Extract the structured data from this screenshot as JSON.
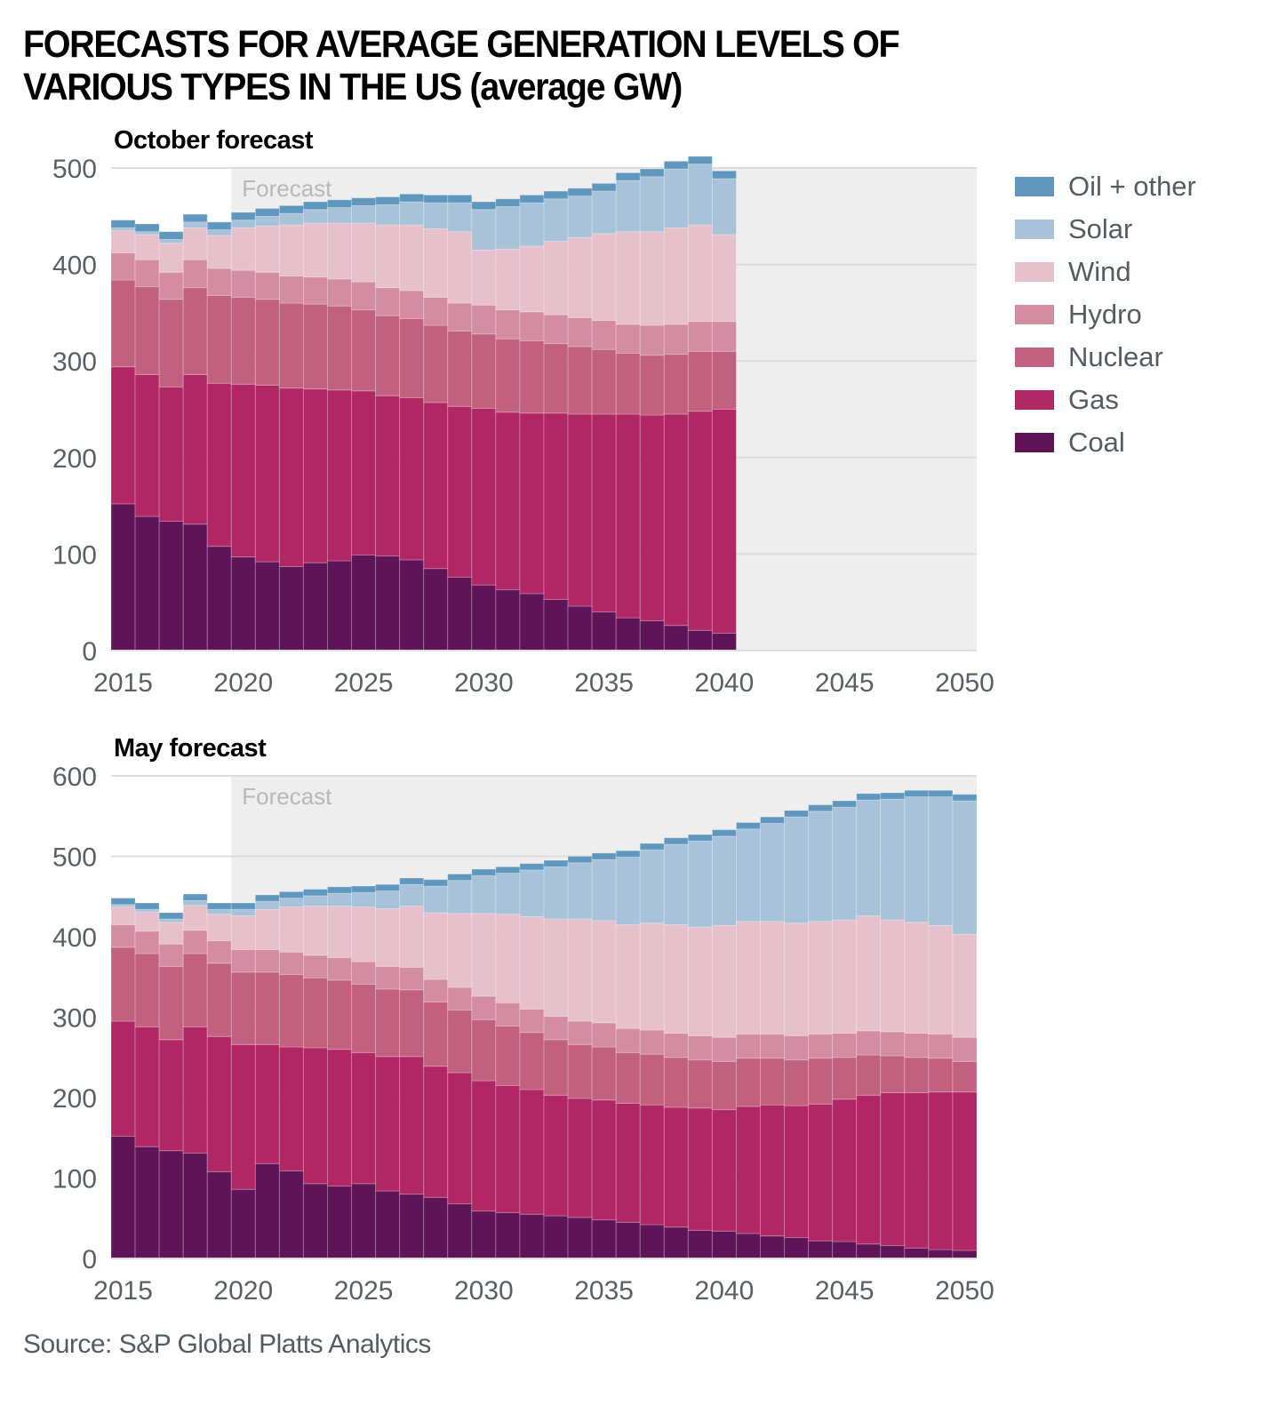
{
  "title": "FORECASTS FOR AVERAGE GENERATION LEVELS OF VARIOUS TYPES IN THE US (average GW)",
  "source": "Source: S&P Global Platts Analytics",
  "legend": [
    {
      "name": "Oil + other",
      "color": "#5f97bf"
    },
    {
      "name": "Solar",
      "color": "#a7c2d9"
    },
    {
      "name": "Wind",
      "color": "#e6c0cb"
    },
    {
      "name": "Hydro",
      "color": "#d48ca3"
    },
    {
      "name": "Nuclear",
      "color": "#c2607f"
    },
    {
      "name": "Gas",
      "color": "#b12763"
    },
    {
      "name": "Coal",
      "color": "#5e1456"
    }
  ],
  "chart_data": [
    {
      "type": "bar",
      "stacked": true,
      "title": "October forecast",
      "forecast_label": "Forecast",
      "forecast_start": 2020,
      "xlabel": "",
      "ylabel": "",
      "xlim": [
        2015,
        2050
      ],
      "ylim": [
        0,
        500
      ],
      "yticks": [
        0,
        100,
        200,
        300,
        400,
        500
      ],
      "xticks": [
        2015,
        2020,
        2025,
        2030,
        2035,
        2040,
        2045,
        2050
      ],
      "grid": true,
      "legend_position": "right",
      "categories": [
        2015,
        2016,
        2017,
        2018,
        2019,
        2020,
        2021,
        2022,
        2023,
        2024,
        2025,
        2026,
        2027,
        2028,
        2029,
        2030,
        2031,
        2032,
        2033,
        2034,
        2035,
        2036,
        2037,
        2038,
        2039,
        2040
      ],
      "series": [
        {
          "name": "Coal",
          "values": [
            152,
            139,
            134,
            131,
            108,
            97,
            92,
            87,
            91,
            93,
            99,
            98,
            94,
            85,
            76,
            68,
            63,
            59,
            53,
            46,
            40,
            34,
            31,
            26,
            21,
            18
          ]
        },
        {
          "name": "Gas",
          "values": [
            142,
            147,
            139,
            155,
            169,
            179,
            183,
            185,
            180,
            177,
            170,
            166,
            168,
            172,
            177,
            183,
            184,
            187,
            193,
            199,
            205,
            211,
            213,
            219,
            227,
            232
          ]
        },
        {
          "name": "Nuclear",
          "values": [
            90,
            91,
            91,
            90,
            91,
            90,
            89,
            88,
            88,
            87,
            84,
            83,
            82,
            80,
            78,
            77,
            76,
            75,
            72,
            70,
            67,
            63,
            62,
            62,
            62,
            60
          ]
        },
        {
          "name": "Hydro",
          "values": [
            28,
            28,
            28,
            29,
            28,
            28,
            28,
            28,
            28,
            28,
            29,
            29,
            29,
            29,
            29,
            30,
            30,
            30,
            30,
            30,
            30,
            30,
            31,
            31,
            31,
            31
          ]
        },
        {
          "name": "Wind",
          "values": [
            23,
            26,
            30,
            33,
            34,
            44,
            48,
            53,
            56,
            58,
            61,
            65,
            68,
            71,
            74,
            57,
            63,
            68,
            76,
            83,
            90,
            96,
            97,
            100,
            100,
            90
          ]
        },
        {
          "name": "Solar",
          "values": [
            3,
            3,
            4,
            6,
            6,
            8,
            10,
            12,
            14,
            16,
            18,
            21,
            24,
            27,
            30,
            42,
            44,
            45,
            44,
            43,
            44,
            53,
            57,
            61,
            63,
            58
          ]
        },
        {
          "name": "Oil + other",
          "values": [
            8,
            8,
            8,
            8,
            8,
            8,
            8,
            8,
            8,
            8,
            8,
            8,
            8,
            8,
            8,
            8,
            8,
            8,
            8,
            8,
            8,
            8,
            8,
            8,
            8,
            8
          ]
        }
      ]
    },
    {
      "type": "bar",
      "stacked": true,
      "title": "May forecast",
      "forecast_label": "Forecast",
      "forecast_start": 2020,
      "xlabel": "",
      "ylabel": "",
      "xlim": [
        2015,
        2050
      ],
      "ylim": [
        0,
        600
      ],
      "yticks": [
        0,
        100,
        200,
        300,
        400,
        500,
        600
      ],
      "xticks": [
        2015,
        2020,
        2025,
        2030,
        2035,
        2040,
        2045,
        2050
      ],
      "grid": true,
      "categories": [
        2015,
        2016,
        2017,
        2018,
        2019,
        2020,
        2021,
        2022,
        2023,
        2024,
        2025,
        2026,
        2027,
        2028,
        2029,
        2030,
        2031,
        2032,
        2033,
        2034,
        2035,
        2036,
        2037,
        2038,
        2039,
        2040,
        2041,
        2042,
        2043,
        2044,
        2045,
        2046,
        2047,
        2048,
        2049,
        2050
      ],
      "series": [
        {
          "name": "Coal",
          "values": [
            152,
            139,
            134,
            131,
            108,
            86,
            118,
            109,
            93,
            90,
            93,
            84,
            80,
            76,
            68,
            59,
            57,
            55,
            53,
            51,
            48,
            45,
            42,
            39,
            35,
            34,
            31,
            28,
            26,
            22,
            21,
            18,
            16,
            13,
            11,
            10
          ]
        },
        {
          "name": "Gas",
          "values": [
            143,
            149,
            138,
            157,
            168,
            180,
            148,
            154,
            169,
            170,
            163,
            167,
            171,
            163,
            163,
            162,
            158,
            155,
            150,
            148,
            149,
            148,
            149,
            149,
            152,
            151,
            158,
            163,
            164,
            170,
            177,
            185,
            190,
            193,
            196,
            197
          ]
        },
        {
          "name": "Nuclear",
          "values": [
            92,
            91,
            91,
            91,
            91,
            90,
            90,
            90,
            87,
            86,
            85,
            84,
            83,
            80,
            78,
            76,
            74,
            71,
            69,
            67,
            66,
            63,
            63,
            62,
            60,
            60,
            60,
            58,
            57,
            57,
            52,
            50,
            46,
            44,
            42,
            38
          ]
        },
        {
          "name": "Hydro",
          "values": [
            28,
            28,
            28,
            29,
            28,
            28,
            28,
            28,
            28,
            28,
            28,
            28,
            28,
            28,
            28,
            29,
            29,
            29,
            29,
            29,
            30,
            30,
            30,
            30,
            30,
            30,
            30,
            30,
            30,
            30,
            30,
            30,
            30,
            30,
            30,
            30
          ]
        },
        {
          "name": "Wind",
          "values": [
            22,
            24,
            27,
            31,
            33,
            42,
            50,
            56,
            61,
            64,
            68,
            72,
            76,
            83,
            92,
            103,
            110,
            115,
            121,
            127,
            127,
            129,
            133,
            135,
            135,
            139,
            140,
            140,
            140,
            140,
            141,
            143,
            139,
            138,
            135,
            128
          ]
        },
        {
          "name": "Solar",
          "values": [
            3,
            3,
            4,
            6,
            6,
            8,
            10,
            11,
            13,
            16,
            18,
            22,
            27,
            33,
            41,
            47,
            51,
            58,
            65,
            70,
            76,
            84,
            91,
            100,
            107,
            111,
            115,
            122,
            132,
            137,
            140,
            144,
            150,
            156,
            160,
            166
          ]
        },
        {
          "name": "Oil + other",
          "values": [
            8,
            8,
            8,
            8,
            8,
            8,
            8,
            8,
            8,
            8,
            8,
            8,
            8,
            8,
            8,
            8,
            8,
            8,
            8,
            8,
            8,
            8,
            8,
            8,
            8,
            8,
            8,
            8,
            8,
            8,
            8,
            8,
            8,
            8,
            8,
            8
          ]
        }
      ]
    }
  ]
}
